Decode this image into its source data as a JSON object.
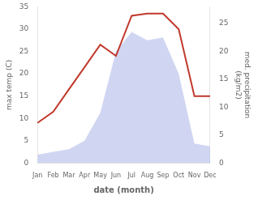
{
  "chart_data": {
    "type": "line",
    "categories": [
      "Jan",
      "Feb",
      "Mar",
      "Apr",
      "May",
      "Jun",
      "Jul",
      "Aug",
      "Sep",
      "Oct",
      "Nov",
      "Dec"
    ],
    "series": [
      {
        "type": "area",
        "color": "#aab4e8",
        "axis": "y2",
        "values": [
          1.5,
          2.0,
          2.5,
          4.0,
          9.0,
          20.0,
          23.5,
          22.0,
          22.5,
          16.0,
          3.5,
          3.0
        ]
      },
      {
        "type": "line",
        "color": "#c0392b",
        "values": [
          9,
          11.5,
          16.5,
          21.5,
          26.5,
          24.0,
          33.0,
          33.5,
          33.5,
          30.0,
          15.0,
          15.0
        ]
      }
    ],
    "xlabel": "date (month)",
    "ylabel": "max temp (C)",
    "y2label": "med. precipitation\n(kg/m2)",
    "ylim": [
      0,
      35
    ],
    "yticks": [
      0,
      5,
      10,
      15,
      20,
      25,
      30,
      35
    ],
    "y2lim": [
      0,
      28
    ],
    "y2ticks": [
      0,
      5,
      10,
      15,
      20,
      25
    ],
    "grid": false
  }
}
